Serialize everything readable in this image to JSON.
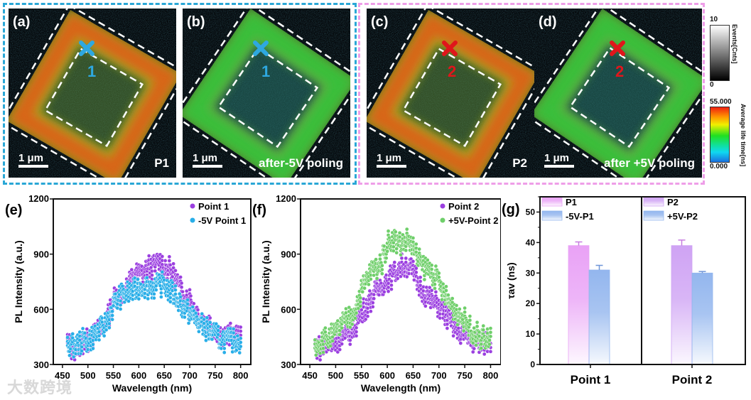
{
  "panels": [
    {
      "label": "(a)",
      "tag": "P1",
      "scale": "1 μm",
      "point": "1",
      "marker_color": "#2ea8e0",
      "frame": "warm"
    },
    {
      "label": "(b)",
      "tag": "after-5V poling",
      "scale": "1 μm",
      "point": "1",
      "marker_color": "#2ea8e0",
      "frame": "cool"
    },
    {
      "label": "(c)",
      "tag": "P2",
      "scale": "1 μm",
      "point": "2",
      "marker_color": "#e0161b",
      "frame": "warm"
    },
    {
      "label": "(d)",
      "tag": "after +5V poling",
      "scale": "1 μm",
      "point": "2",
      "marker_color": "#e0161b",
      "frame": "cool"
    }
  ],
  "colorbars": {
    "events": {
      "max": "10",
      "min": "0",
      "title": "Events[Cnts]"
    },
    "lifetime": {
      "max": "55.000",
      "min": "0.000",
      "title": "Average life time[ns]"
    }
  },
  "colors": {
    "group1_border": "#2aa7d6",
    "group2_border": "#ee9ee8"
  },
  "watermark": "大数跨境",
  "chart_data": [
    {
      "type": "scatter",
      "panel": "(e)",
      "xlabel": "Wavelength (nm)",
      "ylabel": "PL Intensity (a.u.)",
      "xlim": [
        432,
        820
      ],
      "ylim": [
        300,
        1200
      ],
      "xticks": [
        450,
        500,
        550,
        600,
        650,
        700,
        750,
        800
      ],
      "yticks": [
        300,
        600,
        900,
        1200
      ],
      "legend_position": "top-right",
      "x": [
        460,
        470,
        480,
        490,
        500,
        510,
        520,
        530,
        540,
        550,
        560,
        570,
        580,
        590,
        600,
        610,
        620,
        630,
        640,
        650,
        660,
        670,
        680,
        690,
        700,
        710,
        720,
        730,
        740,
        750,
        760,
        770,
        780,
        790,
        800
      ],
      "series": [
        {
          "name": "Point 1",
          "color": "#9b3fe0",
          "values": [
            420,
            380,
            400,
            420,
            430,
            450,
            480,
            500,
            560,
            650,
            680,
            700,
            730,
            790,
            790,
            800,
            830,
            830,
            860,
            830,
            820,
            780,
            720,
            680,
            660,
            590,
            560,
            520,
            520,
            500,
            460,
            450,
            460,
            460,
            440
          ]
        },
        {
          "name": "-5V Point 1",
          "color": "#28aee8",
          "values": [
            420,
            400,
            410,
            430,
            430,
            450,
            480,
            500,
            550,
            620,
            660,
            680,
            690,
            700,
            720,
            730,
            720,
            720,
            730,
            740,
            700,
            680,
            640,
            600,
            580,
            550,
            520,
            500,
            480,
            460,
            440,
            430,
            430,
            430,
            430
          ]
        }
      ]
    },
    {
      "type": "scatter",
      "panel": "(f)",
      "xlabel": "Wavelength (nm)",
      "ylabel": "PL Intensity (a.u.)",
      "xlim": [
        432,
        820
      ],
      "ylim": [
        300,
        1200
      ],
      "xticks": [
        450,
        500,
        550,
        600,
        650,
        700,
        750,
        800
      ],
      "yticks": [
        300,
        600,
        900,
        1200
      ],
      "legend_position": "top-right",
      "x": [
        460,
        470,
        480,
        490,
        500,
        510,
        520,
        530,
        540,
        550,
        560,
        570,
        580,
        590,
        600,
        610,
        620,
        630,
        640,
        650,
        660,
        670,
        680,
        690,
        700,
        710,
        720,
        730,
        740,
        750,
        760,
        770,
        780,
        790,
        800
      ],
      "series": [
        {
          "name": "Point 2",
          "color": "#9b3fe0",
          "values": [
            400,
            390,
            400,
            410,
            430,
            440,
            450,
            480,
            520,
            580,
            620,
            660,
            700,
            740,
            760,
            780,
            820,
            840,
            840,
            800,
            740,
            700,
            660,
            640,
            620,
            580,
            540,
            500,
            480,
            460,
            440,
            420,
            410,
            420,
            430
          ]
        },
        {
          "name": "+5V-Point 2",
          "color": "#6fcf6a",
          "values": [
            410,
            420,
            440,
            450,
            470,
            510,
            540,
            560,
            620,
            700,
            760,
            810,
            830,
            860,
            960,
            990,
            960,
            960,
            980,
            940,
            870,
            830,
            820,
            790,
            740,
            680,
            640,
            600,
            570,
            540,
            500,
            470,
            450,
            440,
            440
          ]
        }
      ]
    },
    {
      "type": "bar",
      "panel": "(g)",
      "ylabel": "τav (ns)",
      "ylim": [
        0,
        55
      ],
      "yticks": [
        0,
        10,
        20,
        30,
        40,
        50
      ],
      "categories": [
        "Point 1",
        "Point 2"
      ],
      "groups": [
        {
          "category": "Point 1",
          "bars": [
            {
              "name": "P1",
              "value": 39,
              "error": 1.2,
              "color": "#e9a2f6"
            },
            {
              "name": "-5V-P1",
              "value": 31,
              "error": 1.5,
              "color": "#93b6ee"
            }
          ]
        },
        {
          "category": "Point 2",
          "bars": [
            {
              "name": "P2",
              "value": 39,
              "error": 1.8,
              "color": "#cfa3f4"
            },
            {
              "name": "+5V-P2",
              "value": 30,
              "error": 0.5,
              "color": "#93b6ee"
            }
          ]
        }
      ]
    }
  ]
}
